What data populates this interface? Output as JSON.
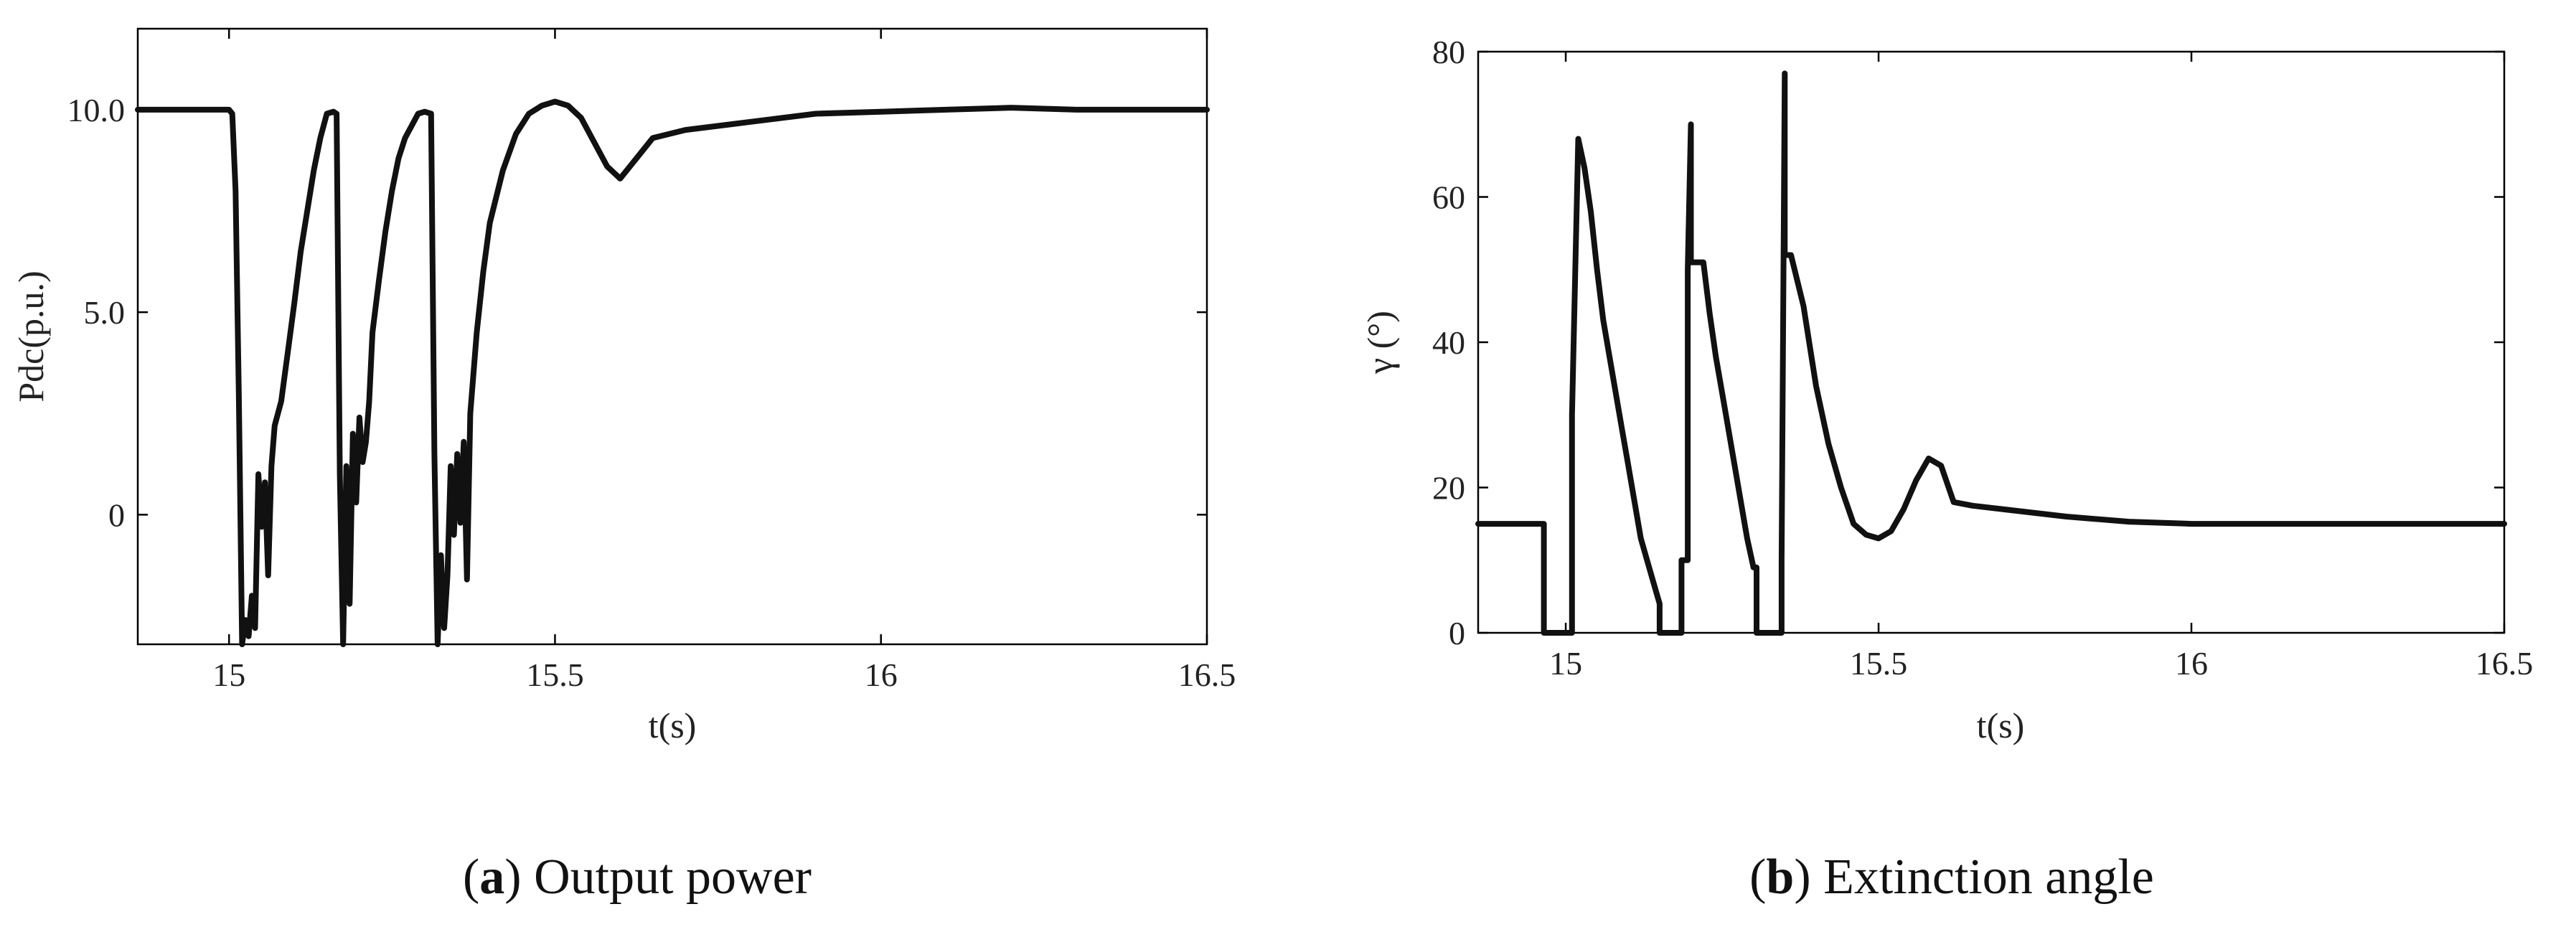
{
  "chart_data": [
    {
      "type": "line",
      "xlabel": "t(s)",
      "ylabel": "Pdc(p.u.)",
      "xlim": [
        14.86,
        16.5
      ],
      "ylim": [
        -3.2,
        12.0
      ],
      "xticks": [
        15,
        15.5,
        16,
        16.5
      ],
      "xtick_labels": [
        "15",
        "15.5",
        "16",
        "16.5"
      ],
      "yticks": [
        0,
        5,
        10
      ],
      "ytick_labels": [
        "0",
        "5.0",
        "10.0"
      ],
      "grid": false,
      "caption_letter": "a",
      "caption_text": " Output power",
      "series": [
        {
          "x": [
            14.86,
            15.0,
            15.005,
            15.01,
            15.015,
            15.02,
            15.025,
            15.03,
            15.035,
            15.04,
            15.045,
            15.05,
            15.055,
            15.06,
            15.065,
            15.07,
            15.08,
            15.09,
            15.1,
            15.11,
            15.12,
            15.13,
            15.14,
            15.15,
            15.16,
            15.165,
            15.17,
            15.175,
            15.18,
            15.185,
            15.19,
            15.195,
            15.2,
            15.205,
            15.21,
            15.215,
            15.22,
            15.23,
            15.24,
            15.25,
            15.26,
            15.27,
            15.28,
            15.29,
            15.3,
            15.31,
            15.315,
            15.32,
            15.325,
            15.33,
            15.335,
            15.34,
            15.345,
            15.35,
            15.355,
            15.36,
            15.365,
            15.37,
            15.38,
            15.39,
            15.4,
            15.42,
            15.44,
            15.46,
            15.48,
            15.5,
            15.52,
            15.54,
            15.56,
            15.58,
            15.6,
            15.62,
            15.65,
            15.7,
            15.8,
            15.9,
            16.0,
            16.1,
            16.2,
            16.3,
            16.4,
            16.5
          ],
          "values": [
            10.0,
            10.0,
            9.9,
            8.0,
            3.0,
            -3.2,
            -2.6,
            -3.0,
            -2.0,
            -2.8,
            1.0,
            -0.3,
            0.8,
            -1.5,
            1.2,
            2.2,
            2.8,
            4.0,
            5.2,
            6.5,
            7.5,
            8.5,
            9.3,
            9.9,
            9.95,
            9.9,
            1.0,
            -3.2,
            1.2,
            -2.2,
            2.0,
            0.3,
            2.4,
            1.3,
            1.8,
            2.8,
            4.5,
            5.8,
            7.0,
            8.0,
            8.8,
            9.3,
            9.6,
            9.9,
            9.95,
            9.9,
            1.5,
            -3.2,
            -1.0,
            -2.8,
            -1.5,
            1.2,
            -0.5,
            1.5,
            -0.2,
            1.8,
            -1.6,
            2.5,
            4.5,
            6.0,
            7.2,
            8.5,
            9.4,
            9.9,
            10.1,
            10.2,
            10.1,
            9.8,
            9.2,
            8.6,
            8.3,
            8.7,
            9.3,
            9.5,
            9.7,
            9.9,
            9.95,
            10.0,
            10.05,
            10.0,
            10.0,
            10.0
          ]
        }
      ]
    },
    {
      "type": "line",
      "xlabel": "t(s)",
      "ylabel": "γ (°)",
      "xlim": [
        14.86,
        16.5
      ],
      "ylim": [
        0,
        80
      ],
      "xticks": [
        15,
        15.5,
        16,
        16.5
      ],
      "xtick_labels": [
        "15",
        "15.5",
        "16",
        "16.5"
      ],
      "yticks": [
        0,
        20,
        40,
        60,
        80
      ],
      "ytick_labels": [
        "0",
        "20",
        "40",
        "60",
        "80"
      ],
      "grid": false,
      "caption_letter": "b",
      "caption_text": " Extinction angle",
      "series": [
        {
          "x": [
            14.86,
            14.965,
            14.965,
            15.01,
            15.01,
            15.02,
            15.02,
            15.03,
            15.03,
            15.04,
            15.05,
            15.06,
            15.07,
            15.08,
            15.09,
            15.1,
            15.11,
            15.12,
            15.13,
            15.14,
            15.15,
            15.15,
            15.185,
            15.185,
            15.195,
            15.195,
            15.2,
            15.2,
            15.22,
            15.23,
            15.24,
            15.25,
            15.26,
            15.27,
            15.28,
            15.29,
            15.3,
            15.305,
            15.305,
            15.345,
            15.345,
            15.35,
            15.35,
            15.36,
            15.36,
            15.38,
            15.4,
            15.42,
            15.44,
            15.46,
            15.48,
            15.5,
            15.52,
            15.54,
            15.56,
            15.58,
            15.6,
            15.62,
            15.65,
            15.7,
            15.8,
            15.9,
            16.0,
            16.1,
            16.2,
            16.3,
            16.4,
            16.5
          ],
          "values": [
            15,
            15,
            0,
            0,
            30,
            68,
            68,
            64,
            64,
            58,
            50,
            43,
            38,
            33,
            28,
            23,
            18,
            13,
            10,
            7,
            4,
            0,
            0,
            10,
            10,
            50,
            70,
            51,
            51,
            44,
            38,
            33,
            28,
            23,
            18,
            13,
            9,
            9,
            0,
            0,
            10,
            77,
            52,
            52,
            52,
            45,
            34,
            26,
            20,
            15,
            13.5,
            13,
            14,
            17,
            21,
            24,
            23,
            18,
            17.5,
            17,
            16,
            15.3,
            15,
            15,
            15,
            15,
            15,
            15
          ]
        }
      ]
    }
  ]
}
